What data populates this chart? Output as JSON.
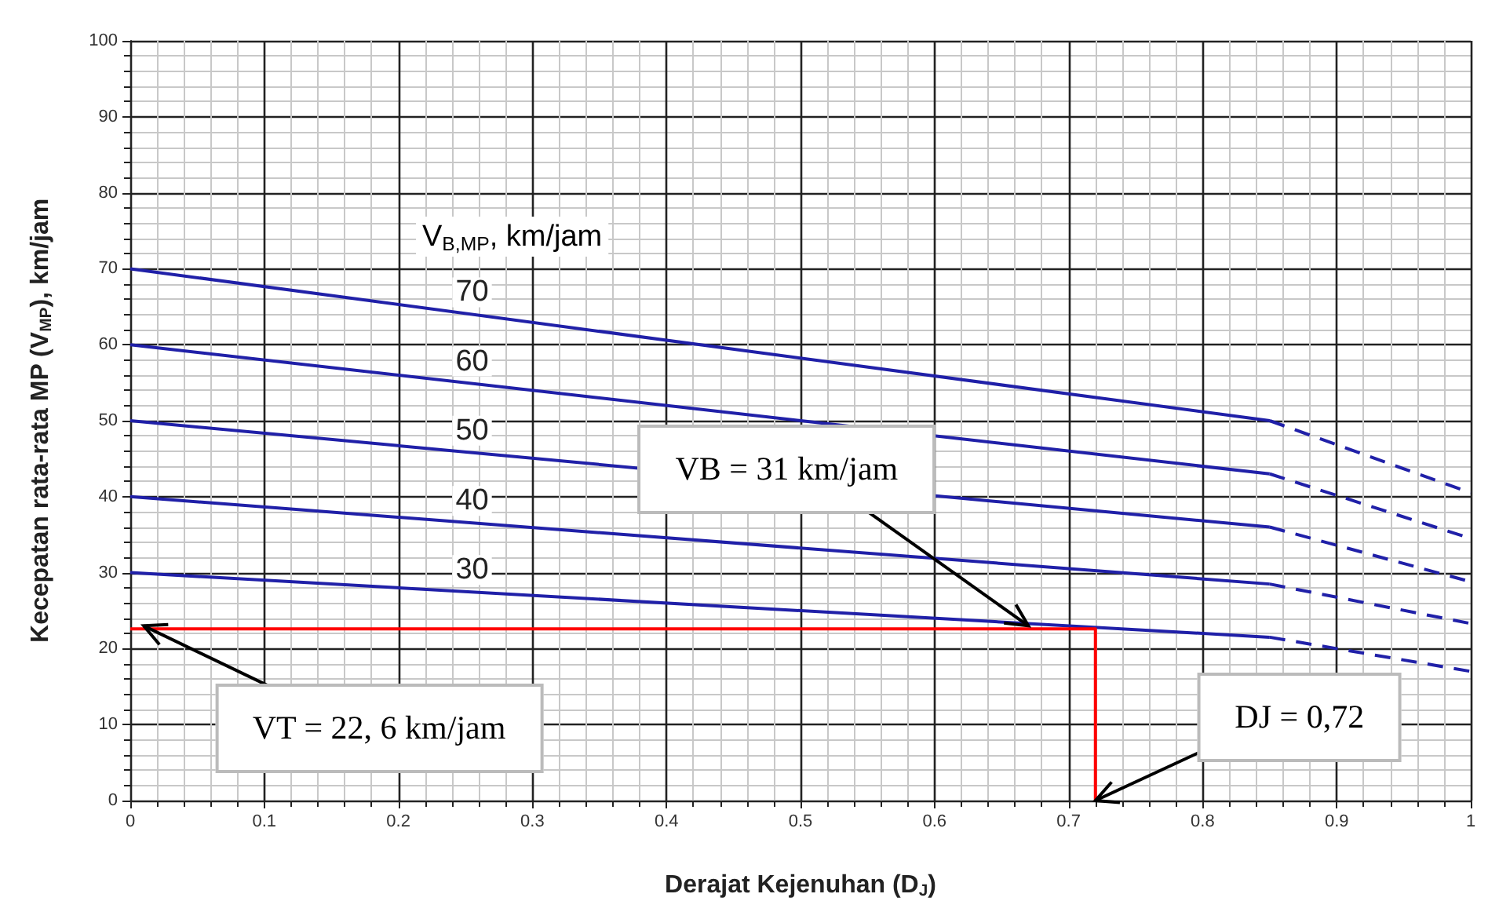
{
  "chart_data": {
    "type": "line",
    "xlabel": "Derajat Kejenuhan (D$_{J}$)",
    "ylabel": "Kecepatan rata-rata MP (V$_{MP}$), km/jam",
    "legend_title": "V$_{B,MP}$, km/jam",
    "xlim": [
      0,
      1
    ],
    "xticks": [
      0,
      0.1,
      0.2,
      0.3,
      0.4,
      0.5,
      0.6,
      0.7,
      0.8,
      0.9,
      1
    ],
    "ylim": [
      0,
      100
    ],
    "yticks": [
      0,
      10,
      20,
      30,
      40,
      50,
      60,
      70,
      80,
      90,
      100
    ],
    "grid": true,
    "marker": "none",
    "line_style": "solid",
    "series": [
      {
        "name": "70",
        "color": "#2020a8",
        "x": [
          0,
          0.85
        ],
        "values": [
          70,
          50
        ]
      },
      {
        "color": "#2020a8",
        "x": [
          0.85,
          1
        ],
        "values": [
          50,
          40.5
        ],
        "line_style": "dashed"
      },
      {
        "name": "60",
        "color": "#2020a8",
        "x": [
          0,
          0.85
        ],
        "values": [
          60,
          43
        ]
      },
      {
        "color": "#2020a8",
        "x": [
          0.85,
          1
        ],
        "values": [
          43,
          34.5
        ],
        "line_style": "dashed"
      },
      {
        "name": "50",
        "color": "#2020a8",
        "x": [
          0,
          0.85
        ],
        "values": [
          50,
          36
        ]
      },
      {
        "color": "#2020a8",
        "x": [
          0.85,
          1
        ],
        "values": [
          36,
          28.8
        ],
        "line_style": "dashed"
      },
      {
        "name": "40",
        "color": "#2020a8",
        "x": [
          0,
          0.85
        ],
        "values": [
          40,
          28.5
        ]
      },
      {
        "color": "#2020a8",
        "x": [
          0.85,
          1
        ],
        "values": [
          28.5,
          23.3
        ],
        "line_style": "dashed"
      },
      {
        "name": "30",
        "color": "#2020a8",
        "x": [
          0,
          0.85
        ],
        "values": [
          30,
          21.5
        ]
      },
      {
        "color": "#2020a8",
        "x": [
          0.85,
          1
        ],
        "values": [
          21.5,
          17
        ],
        "line_style": "dashed"
      },
      {
        "color": "#ff0000",
        "x": [
          0,
          0.72,
          0.72
        ],
        "values": [
          22.6,
          22.6,
          0
        ]
      }
    ],
    "annotations": [
      {
        "text": "VT = 22, 6 km/jam",
        "x": 0.01,
        "y": 23
      },
      {
        "text": "VB = 31 km/jam",
        "x": 0.67,
        "y": 23
      },
      {
        "text": "DJ = 0,72",
        "x": 0.72,
        "y": 0
      }
    ]
  }
}
